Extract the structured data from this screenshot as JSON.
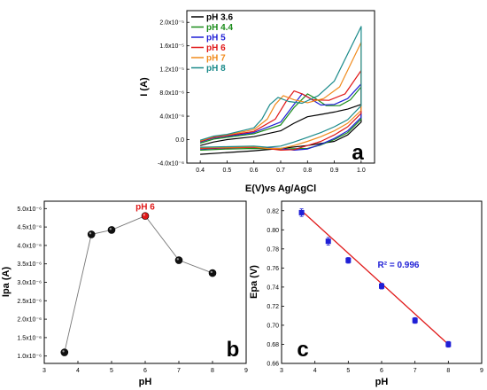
{
  "chart_data": [
    {
      "type": "line",
      "panel_label": "a",
      "xlabel": "E(V)vs Ag/AgCl",
      "ylabel": "I (A)",
      "xlim": [
        0.35,
        1.05
      ],
      "ylim": [
        -4e-06,
        2.2e-05
      ],
      "x_ticks": [
        "0.4",
        "0.5",
        "0.6",
        "0.7",
        "0.8",
        "0.9",
        "1.0"
      ],
      "y_ticks": [
        "-4.0x10⁻⁶",
        "0.0",
        "4.0x10⁻⁶",
        "8.0x10⁻⁶",
        "1.2x10⁻⁵",
        "1.6x10⁻⁵",
        "2.0x10⁻⁵"
      ],
      "legend_position": "top-left",
      "series": [
        {
          "name": "pH 3.6",
          "color": "#000000",
          "forward": [
            [
              0.4,
              -1e-06
            ],
            [
              0.45,
              -4e-07
            ],
            [
              0.5,
              0.0
            ],
            [
              0.6,
              5e-07
            ],
            [
              0.7,
              1.5e-06
            ],
            [
              0.75,
              2.8e-06
            ],
            [
              0.8,
              3.9e-06
            ],
            [
              0.85,
              4.3e-06
            ],
            [
              0.9,
              4.7e-06
            ],
            [
              0.95,
              5.2e-06
            ],
            [
              1.0,
              6e-06
            ]
          ],
          "reverse": [
            [
              1.0,
              3e-06
            ],
            [
              0.95,
              8e-07
            ],
            [
              0.9,
              -3e-07
            ],
            [
              0.8,
              -1e-06
            ],
            [
              0.7,
              -1.5e-06
            ],
            [
              0.6,
              -1.9e-06
            ],
            [
              0.5,
              -2.2e-06
            ],
            [
              0.4,
              -2.5e-06
            ]
          ]
        },
        {
          "name": "pH 4.4",
          "color": "#1a8c1a",
          "forward": [
            [
              0.4,
              -6e-07
            ],
            [
              0.45,
              1e-07
            ],
            [
              0.5,
              4e-07
            ],
            [
              0.6,
              1e-06
            ],
            [
              0.7,
              2.5e-06
            ],
            [
              0.75,
              5.5e-06
            ],
            [
              0.8,
              7.8e-06
            ],
            [
              0.83,
              7e-06
            ],
            [
              0.87,
              5.8e-06
            ],
            [
              0.92,
              5.8e-06
            ],
            [
              0.96,
              6.8e-06
            ],
            [
              1.0,
              9e-06
            ]
          ],
          "reverse": [
            [
              1.0,
              3.5e-06
            ],
            [
              0.95,
              1.2e-06
            ],
            [
              0.9,
              0.0
            ],
            [
              0.85,
              -9e-07
            ],
            [
              0.8,
              -1.5e-06
            ],
            [
              0.7,
              -1.6e-06
            ],
            [
              0.6,
              -1.5e-06
            ],
            [
              0.5,
              -1.6e-06
            ],
            [
              0.4,
              -1.8e-06
            ]
          ]
        },
        {
          "name": "pH 5",
          "color": "#1f1fd6",
          "forward": [
            [
              0.4,
              -4e-07
            ],
            [
              0.45,
              3e-07
            ],
            [
              0.5,
              6e-07
            ],
            [
              0.6,
              1.2e-06
            ],
            [
              0.7,
              3e-06
            ],
            [
              0.75,
              6e-06
            ],
            [
              0.78,
              7.8e-06
            ],
            [
              0.81,
              7e-06
            ],
            [
              0.85,
              5.9e-06
            ],
            [
              0.9,
              6e-06
            ],
            [
              0.95,
              7e-06
            ],
            [
              1.0,
              9.5e-06
            ]
          ],
          "reverse": [
            [
              1.0,
              3.8e-06
            ],
            [
              0.95,
              1.5e-06
            ],
            [
              0.9,
              2e-07
            ],
            [
              0.85,
              -8e-07
            ],
            [
              0.8,
              -1.6e-06
            ],
            [
              0.75,
              -1.8e-06
            ],
            [
              0.7,
              -1.5e-06
            ],
            [
              0.6,
              -1.3e-06
            ],
            [
              0.5,
              -1.4e-06
            ],
            [
              0.4,
              -1.6e-06
            ]
          ]
        },
        {
          "name": "pH 6",
          "color": "#e01818",
          "forward": [
            [
              0.4,
              -3e-07
            ],
            [
              0.45,
              4e-07
            ],
            [
              0.5,
              7e-07
            ],
            [
              0.6,
              1.4e-06
            ],
            [
              0.68,
              3.5e-06
            ],
            [
              0.72,
              6.5e-06
            ],
            [
              0.75,
              8.3e-06
            ],
            [
              0.78,
              7.8e-06
            ],
            [
              0.82,
              6.8e-06
            ],
            [
              0.88,
              6.7e-06
            ],
            [
              0.94,
              7.8e-06
            ],
            [
              1.0,
              1.18e-05
            ]
          ],
          "reverse": [
            [
              1.0,
              4.5e-06
            ],
            [
              0.95,
              2.2e-06
            ],
            [
              0.9,
              8e-07
            ],
            [
              0.85,
              -3e-07
            ],
            [
              0.8,
              -1e-06
            ],
            [
              0.75,
              -1.7e-06
            ],
            [
              0.7,
              -1.8e-06
            ],
            [
              0.65,
              -1.5e-06
            ],
            [
              0.6,
              -1.3e-06
            ],
            [
              0.5,
              -1.4e-06
            ],
            [
              0.4,
              -1.5e-06
            ]
          ]
        },
        {
          "name": "pH 7",
          "color": "#f08a1c",
          "forward": [
            [
              0.4,
              -2e-07
            ],
            [
              0.45,
              5e-07
            ],
            [
              0.5,
              8e-07
            ],
            [
              0.6,
              1.7e-06
            ],
            [
              0.65,
              3.5e-06
            ],
            [
              0.68,
              6e-06
            ],
            [
              0.71,
              7.5e-06
            ],
            [
              0.75,
              6.8e-06
            ],
            [
              0.8,
              6.3e-06
            ],
            [
              0.86,
              7e-06
            ],
            [
              0.92,
              9e-06
            ],
            [
              1.0,
              1.66e-05
            ]
          ],
          "reverse": [
            [
              1.0,
              5e-06
            ],
            [
              0.95,
              2.8e-06
            ],
            [
              0.9,
              1.5e-06
            ],
            [
              0.85,
              5e-07
            ],
            [
              0.8,
              -3e-07
            ],
            [
              0.75,
              -1e-06
            ],
            [
              0.7,
              -1.5e-06
            ],
            [
              0.65,
              -1.5e-06
            ],
            [
              0.6,
              -1.2e-06
            ],
            [
              0.5,
              -1.3e-06
            ],
            [
              0.4,
              -1.4e-06
            ]
          ]
        },
        {
          "name": "pH 8",
          "color": "#1a8a8a",
          "forward": [
            [
              0.4,
              -1e-07
            ],
            [
              0.45,
              6e-07
            ],
            [
              0.5,
              9e-07
            ],
            [
              0.6,
              2e-06
            ],
            [
              0.63,
              3.5e-06
            ],
            [
              0.66,
              6e-06
            ],
            [
              0.69,
              7.2e-06
            ],
            [
              0.73,
              6.5e-06
            ],
            [
              0.78,
              6.2e-06
            ],
            [
              0.84,
              7.5e-06
            ],
            [
              0.9,
              1e-05
            ],
            [
              1.0,
              1.93e-05
            ]
          ],
          "reverse": [
            [
              1.0,
              5.8e-06
            ],
            [
              0.95,
              3.4e-06
            ],
            [
              0.9,
              2.2e-06
            ],
            [
              0.85,
              1.2e-06
            ],
            [
              0.8,
              4e-07
            ],
            [
              0.75,
              -4e-07
            ],
            [
              0.7,
              -1.1e-06
            ],
            [
              0.65,
              -1.3e-06
            ],
            [
              0.6,
              -1.1e-06
            ],
            [
              0.5,
              -1.2e-06
            ],
            [
              0.4,
              -1.3e-06
            ]
          ]
        }
      ]
    },
    {
      "type": "line",
      "panel_label": "b",
      "xlabel": "pH",
      "ylabel": "Ipa (A)",
      "xlim": [
        3,
        9
      ],
      "ylim": [
        8e-07,
        5.2e-06
      ],
      "x_ticks": [
        "3",
        "4",
        "5",
        "6",
        "7",
        "8",
        "9"
      ],
      "y_ticks": [
        "1.0x10⁻⁶",
        "1.5x10⁻⁶",
        "2.0x10⁻⁶",
        "2.5x10⁻⁶",
        "3.0x10⁻⁶",
        "3.5x10⁻⁶",
        "4.0x10⁻⁶",
        "4.5x10⁻⁶",
        "5.0x10⁻⁶"
      ],
      "x": [
        3.6,
        4.4,
        5,
        6,
        7,
        8
      ],
      "y": [
        1.1e-06,
        4.3e-06,
        4.42e-06,
        4.8e-06,
        3.6e-06,
        3.25e-06
      ],
      "highlight": {
        "x": 6,
        "label": "pH 6",
        "color": "#e01818"
      }
    },
    {
      "type": "scatter",
      "panel_label": "c",
      "xlabel": "pH",
      "ylabel": "Epa (V)",
      "xlim": [
        3,
        9
      ],
      "ylim": [
        0.66,
        0.83
      ],
      "x_ticks": [
        "3",
        "4",
        "5",
        "6",
        "7",
        "8",
        "9"
      ],
      "y_ticks": [
        "0.66",
        "0.68",
        "0.70",
        "0.72",
        "0.74",
        "0.76",
        "0.78",
        "0.80",
        "0.82"
      ],
      "x": [
        3.6,
        4.4,
        5,
        6,
        7,
        8
      ],
      "y": [
        0.818,
        0.788,
        0.768,
        0.741,
        0.705,
        0.68
      ],
      "error": [
        0.004,
        0.004,
        0.003,
        0.003,
        0.003,
        0.003
      ],
      "fit_line": {
        "x": [
          3.6,
          8
        ],
        "y": [
          0.82,
          0.68
        ],
        "color": "#e01818"
      },
      "annotation": "R² = 0.996"
    }
  ]
}
